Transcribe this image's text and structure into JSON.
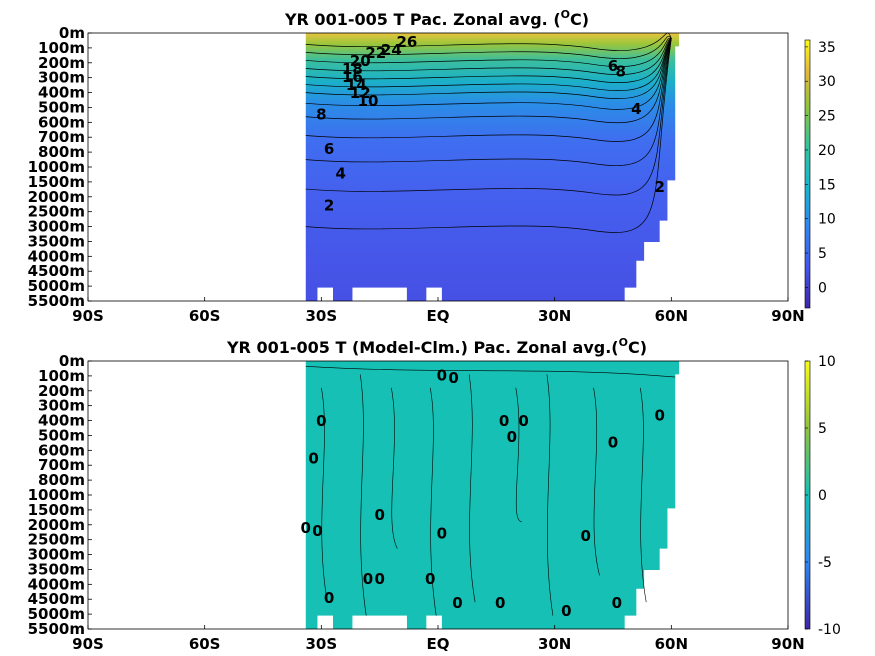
{
  "chart_data": [
    {
      "type": "heatmap",
      "title": "YR 001-005 T Pac. Zonal avg. (",
      "title_sup": "O",
      "title_end": "C)",
      "x_ticks": [
        "90S",
        "60S",
        "30S",
        "EQ",
        "30N",
        "60N",
        "90N"
      ],
      "xlim": [
        -90,
        90
      ],
      "y_ticks": [
        "0m",
        "100m",
        "200m",
        "300m",
        "400m",
        "500m",
        "600m",
        "700m",
        "800m",
        "1000m",
        "1500m",
        "2000m",
        "2500m",
        "3000m",
        "3500m",
        "4000m",
        "4500m",
        "5000m",
        "5500m"
      ],
      "data_extent_lat": [
        -34,
        62
      ],
      "colorbar": {
        "ticks": [
          "35",
          "30",
          "25",
          "20",
          "15",
          "10",
          "5",
          "0"
        ],
        "range": [
          -3,
          36
        ],
        "colors": [
          "#3e26a8",
          "#4355ef",
          "#2e86f4",
          "#14b5d0",
          "#32c49e",
          "#8fc43c",
          "#e3b83a",
          "#f9fb14"
        ]
      },
      "contour_labels": [
        "26",
        "24",
        "22",
        "20",
        "18",
        "16",
        "14",
        "12",
        "10",
        "8",
        "6",
        "4",
        "2",
        "8",
        "6",
        "4",
        "2"
      ],
      "grid": false
    },
    {
      "type": "heatmap",
      "title": "YR 001-005 T (Model-Clm.) Pac. Zonal avg.(",
      "title_sup": "O",
      "title_end": "C)",
      "x_ticks": [
        "90S",
        "60S",
        "30S",
        "EQ",
        "30N",
        "60N",
        "90N"
      ],
      "xlim": [
        -90,
        90
      ],
      "y_ticks": [
        "0m",
        "100m",
        "200m",
        "300m",
        "400m",
        "500m",
        "600m",
        "700m",
        "800m",
        "1000m",
        "1500m",
        "2000m",
        "2500m",
        "3000m",
        "3500m",
        "4000m",
        "4500m",
        "5000m",
        "5500m"
      ],
      "data_extent_lat": [
        -34,
        62
      ],
      "colorbar": {
        "ticks": [
          "10",
          "5",
          "0",
          "-5",
          "-10"
        ],
        "range": [
          -10,
          10
        ],
        "colors": [
          "#3e26a8",
          "#2e86f4",
          "#14c0b4",
          "#8fc43c",
          "#f9fb14"
        ]
      },
      "contour_labels": [
        "0",
        "0",
        "0",
        "0",
        "0",
        "0",
        "0",
        "0",
        "0",
        "0",
        "0",
        "0",
        "0",
        "0",
        "0",
        "0",
        "0",
        "0",
        "0",
        "0",
        "0",
        "0"
      ],
      "grid": false
    }
  ]
}
